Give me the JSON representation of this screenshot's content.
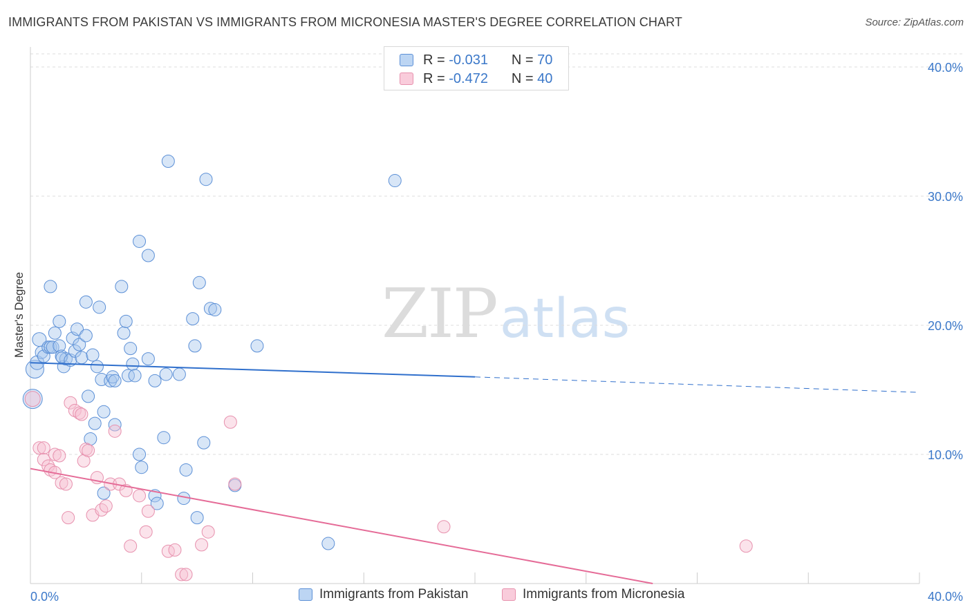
{
  "title": "IMMIGRANTS FROM PAKISTAN VS IMMIGRANTS FROM MICRONESIA MASTER'S DEGREE CORRELATION CHART",
  "source": "Source: ZipAtlas.com",
  "watermark": {
    "zip": "ZIP",
    "atlas": "atlas"
  },
  "legend": {
    "pakistan": {
      "r_label": "R =",
      "r_value": "-0.031",
      "n_label": "N =",
      "n_value": "70"
    },
    "micronesia": {
      "r_label": "R =",
      "r_value": "-0.472",
      "n_label": "N =",
      "n_value": "40"
    }
  },
  "bottom_legend": {
    "pakistan": "Immigrants from Pakistan",
    "micronesia": "Immigrants from Micronesia"
  },
  "colors": {
    "pakistan_fill": "#a9c8ee",
    "pakistan_stroke": "#5b8fd6",
    "pakistan_line": "#2f6fcc",
    "micronesia_fill": "#f7c1d2",
    "micronesia_stroke": "#e790ad",
    "micronesia_line": "#e56b97",
    "axis_text": "#3b78c9",
    "grid": "#dddddd"
  },
  "chart_data": {
    "type": "scatter",
    "title": "IMMIGRANTS FROM PAKISTAN VS IMMIGRANTS FROM MICRONESIA MASTER'S DEGREE CORRELATION CHART",
    "xlabel": "",
    "ylabel": "Master's Degree",
    "xlim": [
      0,
      40
    ],
    "ylim": [
      0,
      40
    ],
    "x_tick_labels": [
      {
        "value": 0,
        "label": "0.0%"
      },
      {
        "value": 40,
        "label": "40.0%"
      }
    ],
    "y_tick_labels": [
      {
        "value": 10,
        "label": "10.0%"
      },
      {
        "value": 20,
        "label": "20.0%"
      },
      {
        "value": 30,
        "label": "30.0%"
      },
      {
        "value": 40,
        "label": "40.0%"
      }
    ],
    "grid": true,
    "series": [
      {
        "name": "Immigrants from Pakistan",
        "R": -0.031,
        "N": 70,
        "trend": {
          "x_start": 0,
          "y_start": 17.1,
          "x_solid_end": 20,
          "y_solid_end": 16.0,
          "x_end": 40,
          "y_end": 14.8
        },
        "points": [
          {
            "x": 0.1,
            "y": 14.3,
            "s": 14
          },
          {
            "x": 0.2,
            "y": 16.6,
            "s": 13
          },
          {
            "x": 0.3,
            "y": 17.1,
            "s": 10
          },
          {
            "x": 0.4,
            "y": 18.9,
            "s": 10
          },
          {
            "x": 0.5,
            "y": 17.9,
            "s": 9
          },
          {
            "x": 0.6,
            "y": 17.6,
            "s": 9
          },
          {
            "x": 0.8,
            "y": 18.3,
            "s": 9
          },
          {
            "x": 0.9,
            "y": 18.3,
            "s": 9
          },
          {
            "x": 0.9,
            "y": 23.0,
            "s": 9
          },
          {
            "x": 1.0,
            "y": 18.3,
            "s": 9
          },
          {
            "x": 1.1,
            "y": 19.4,
            "s": 9
          },
          {
            "x": 1.3,
            "y": 20.3,
            "s": 9
          },
          {
            "x": 1.3,
            "y": 18.4,
            "s": 9
          },
          {
            "x": 1.4,
            "y": 17.6,
            "s": 9
          },
          {
            "x": 1.5,
            "y": 16.8,
            "s": 9
          },
          {
            "x": 1.6,
            "y": 17.4,
            "s": 9
          },
          {
            "x": 1.4,
            "y": 17.5,
            "s": 8
          },
          {
            "x": 1.8,
            "y": 17.3,
            "s": 9
          },
          {
            "x": 1.9,
            "y": 19.0,
            "s": 9
          },
          {
            "x": 2.0,
            "y": 18.0,
            "s": 9
          },
          {
            "x": 2.1,
            "y": 19.7,
            "s": 9
          },
          {
            "x": 2.2,
            "y": 18.5,
            "s": 9
          },
          {
            "x": 2.3,
            "y": 17.5,
            "s": 9
          },
          {
            "x": 2.5,
            "y": 19.2,
            "s": 9
          },
          {
            "x": 2.5,
            "y": 21.8,
            "s": 9
          },
          {
            "x": 2.6,
            "y": 14.5,
            "s": 9
          },
          {
            "x": 2.7,
            "y": 11.2,
            "s": 9
          },
          {
            "x": 2.8,
            "y": 17.7,
            "s": 9
          },
          {
            "x": 2.9,
            "y": 12.4,
            "s": 9
          },
          {
            "x": 3.0,
            "y": 16.8,
            "s": 9
          },
          {
            "x": 3.1,
            "y": 21.4,
            "s": 9
          },
          {
            "x": 3.2,
            "y": 15.8,
            "s": 9
          },
          {
            "x": 3.3,
            "y": 13.3,
            "s": 9
          },
          {
            "x": 3.3,
            "y": 7.0,
            "s": 9
          },
          {
            "x": 3.6,
            "y": 15.7,
            "s": 9
          },
          {
            "x": 3.7,
            "y": 16.0,
            "s": 9
          },
          {
            "x": 3.8,
            "y": 15.7,
            "s": 9
          },
          {
            "x": 3.8,
            "y": 12.3,
            "s": 9
          },
          {
            "x": 4.1,
            "y": 23.0,
            "s": 9
          },
          {
            "x": 4.2,
            "y": 19.4,
            "s": 9
          },
          {
            "x": 4.3,
            "y": 20.3,
            "s": 9
          },
          {
            "x": 4.4,
            "y": 16.1,
            "s": 9
          },
          {
            "x": 4.5,
            "y": 18.2,
            "s": 9
          },
          {
            "x": 4.6,
            "y": 17.0,
            "s": 9
          },
          {
            "x": 4.7,
            "y": 16.1,
            "s": 9
          },
          {
            "x": 4.9,
            "y": 10.0,
            "s": 9
          },
          {
            "x": 4.9,
            "y": 26.5,
            "s": 9
          },
          {
            "x": 5.0,
            "y": 9.0,
            "s": 9
          },
          {
            "x": 5.3,
            "y": 17.4,
            "s": 9
          },
          {
            "x": 5.3,
            "y": 25.4,
            "s": 9
          },
          {
            "x": 5.6,
            "y": 15.7,
            "s": 9
          },
          {
            "x": 5.6,
            "y": 6.8,
            "s": 9
          },
          {
            "x": 5.7,
            "y": 6.2,
            "s": 9
          },
          {
            "x": 6.0,
            "y": 11.3,
            "s": 9
          },
          {
            "x": 6.1,
            "y": 16.2,
            "s": 9
          },
          {
            "x": 6.2,
            "y": 32.7,
            "s": 9
          },
          {
            "x": 6.7,
            "y": 16.2,
            "s": 9
          },
          {
            "x": 6.9,
            "y": 6.6,
            "s": 9
          },
          {
            "x": 7.0,
            "y": 8.8,
            "s": 9
          },
          {
            "x": 7.3,
            "y": 20.5,
            "s": 9
          },
          {
            "x": 7.5,
            "y": 5.1,
            "s": 9
          },
          {
            "x": 7.4,
            "y": 18.4,
            "s": 9
          },
          {
            "x": 7.6,
            "y": 23.3,
            "s": 9
          },
          {
            "x": 7.8,
            "y": 10.9,
            "s": 9
          },
          {
            "x": 7.9,
            "y": 31.3,
            "s": 9
          },
          {
            "x": 8.1,
            "y": 21.3,
            "s": 9
          },
          {
            "x": 8.3,
            "y": 21.2,
            "s": 9
          },
          {
            "x": 9.2,
            "y": 7.6,
            "s": 9
          },
          {
            "x": 10.2,
            "y": 18.4,
            "s": 9
          },
          {
            "x": 13.4,
            "y": 3.1,
            "s": 9
          },
          {
            "x": 16.4,
            "y": 31.2,
            "s": 9
          }
        ]
      },
      {
        "name": "Immigrants from Micronesia",
        "R": -0.472,
        "N": 40,
        "trend": {
          "x_start": 0,
          "y_start": 8.9,
          "x_end": 28,
          "y_end": 0
        },
        "points": [
          {
            "x": 0.1,
            "y": 14.3,
            "s": 11
          },
          {
            "x": 0.4,
            "y": 10.5,
            "s": 9
          },
          {
            "x": 0.6,
            "y": 10.5,
            "s": 9
          },
          {
            "x": 0.6,
            "y": 9.6,
            "s": 9
          },
          {
            "x": 0.8,
            "y": 9.1,
            "s": 9
          },
          {
            "x": 0.9,
            "y": 8.8,
            "s": 9
          },
          {
            "x": 1.1,
            "y": 8.6,
            "s": 9
          },
          {
            "x": 1.1,
            "y": 10.0,
            "s": 9
          },
          {
            "x": 1.3,
            "y": 9.9,
            "s": 9
          },
          {
            "x": 1.4,
            "y": 7.8,
            "s": 9
          },
          {
            "x": 1.6,
            "y": 7.7,
            "s": 9
          },
          {
            "x": 1.7,
            "y": 5.1,
            "s": 9
          },
          {
            "x": 1.8,
            "y": 14.0,
            "s": 9
          },
          {
            "x": 2.0,
            "y": 13.4,
            "s": 9
          },
          {
            "x": 2.2,
            "y": 13.2,
            "s": 9
          },
          {
            "x": 2.3,
            "y": 13.1,
            "s": 9
          },
          {
            "x": 2.4,
            "y": 9.5,
            "s": 9
          },
          {
            "x": 2.5,
            "y": 10.4,
            "s": 9
          },
          {
            "x": 2.6,
            "y": 10.3,
            "s": 9
          },
          {
            "x": 2.8,
            "y": 5.3,
            "s": 9
          },
          {
            "x": 3.0,
            "y": 8.2,
            "s": 9
          },
          {
            "x": 3.2,
            "y": 5.7,
            "s": 9
          },
          {
            "x": 3.4,
            "y": 6.0,
            "s": 9
          },
          {
            "x": 3.6,
            "y": 7.7,
            "s": 9
          },
          {
            "x": 3.8,
            "y": 11.8,
            "s": 9
          },
          {
            "x": 4.0,
            "y": 7.7,
            "s": 9
          },
          {
            "x": 4.3,
            "y": 7.2,
            "s": 9
          },
          {
            "x": 4.5,
            "y": 2.9,
            "s": 9
          },
          {
            "x": 4.9,
            "y": 6.8,
            "s": 9
          },
          {
            "x": 5.2,
            "y": 4.0,
            "s": 9
          },
          {
            "x": 5.3,
            "y": 5.6,
            "s": 9
          },
          {
            "x": 6.2,
            "y": 2.5,
            "s": 9
          },
          {
            "x": 6.5,
            "y": 2.6,
            "s": 9
          },
          {
            "x": 6.8,
            "y": 0.7,
            "s": 9
          },
          {
            "x": 7.0,
            "y": 0.7,
            "s": 9
          },
          {
            "x": 7.7,
            "y": 3.0,
            "s": 9
          },
          {
            "x": 8.0,
            "y": 4.0,
            "s": 9
          },
          {
            "x": 9.0,
            "y": 12.5,
            "s": 9
          },
          {
            "x": 9.2,
            "y": 7.7,
            "s": 9
          },
          {
            "x": 18.6,
            "y": 4.4,
            "s": 9
          },
          {
            "x": 32.2,
            "y": 2.9,
            "s": 9
          }
        ]
      }
    ]
  }
}
